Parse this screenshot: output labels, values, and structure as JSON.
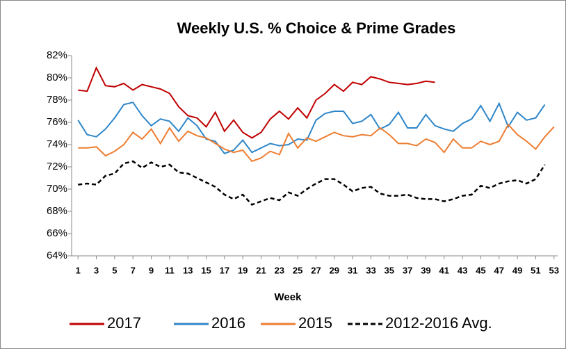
{
  "chart_data": {
    "type": "line",
    "title": "Weekly U.S. % Choice & Prime Grades",
    "x_label": "Week",
    "x": [
      1,
      2,
      3,
      4,
      5,
      6,
      7,
      8,
      9,
      10,
      11,
      12,
      13,
      14,
      15,
      16,
      17,
      18,
      19,
      20,
      21,
      22,
      23,
      24,
      25,
      26,
      27,
      28,
      29,
      30,
      31,
      32,
      33,
      34,
      35,
      36,
      37,
      38,
      39,
      40,
      41,
      42,
      43,
      44,
      45,
      46,
      47,
      48,
      49,
      50,
      51,
      52,
      53
    ],
    "xlim": [
      0.3,
      53.4
    ],
    "xticks": [
      1,
      3,
      5,
      7,
      9,
      11,
      13,
      15,
      17,
      19,
      21,
      23,
      25,
      27,
      29,
      31,
      33,
      35,
      37,
      39,
      41,
      43,
      45,
      47,
      49,
      51,
      53
    ],
    "ylim": [
      64,
      82
    ],
    "yticks": [
      {
        "value": 64,
        "label": "64%"
      },
      {
        "value": 66,
        "label": "66%"
      },
      {
        "value": 68,
        "label": "68%"
      },
      {
        "value": 70,
        "label": "70%"
      },
      {
        "value": 72,
        "label": "72%"
      },
      {
        "value": 74,
        "label": "74%"
      },
      {
        "value": 76,
        "label": "76%"
      },
      {
        "value": 78,
        "label": "78%"
      },
      {
        "value": 80,
        "label": "80%"
      },
      {
        "value": 82,
        "label": "82%"
      }
    ],
    "grid": false,
    "legend": "bottom",
    "series": [
      {
        "name": "2017",
        "color": "#c00000",
        "dashed": false,
        "values": [
          78.9,
          78.8,
          80.9,
          79.3,
          79.2,
          79.5,
          78.9,
          79.4,
          79.2,
          79.0,
          78.6,
          77.4,
          76.6,
          76.4,
          75.6,
          76.9,
          75.2,
          76.2,
          75.1,
          74.6,
          75.1,
          76.3,
          77.0,
          76.3,
          77.3,
          76.4,
          78.0,
          78.6,
          79.4,
          78.8,
          79.6,
          79.4,
          80.1,
          79.9,
          79.6,
          79.5,
          79.4,
          79.5,
          79.7,
          79.6,
          null,
          null,
          null,
          null,
          null,
          null,
          null,
          null,
          null,
          null,
          null,
          null,
          null
        ]
      },
      {
        "name": "2016",
        "color": "#2e86c9",
        "dashed": false,
        "values": [
          76.2,
          74.9,
          74.7,
          75.4,
          76.4,
          77.6,
          77.8,
          76.6,
          75.7,
          76.3,
          76.1,
          75.2,
          76.4,
          75.7,
          74.5,
          74.3,
          73.2,
          73.5,
          74.4,
          73.3,
          73.7,
          74.1,
          73.9,
          74.0,
          74.5,
          74.4,
          76.2,
          76.8,
          77.0,
          77.0,
          75.9,
          76.1,
          76.7,
          75.4,
          75.8,
          76.9,
          75.5,
          75.5,
          76.7,
          75.7,
          75.4,
          75.2,
          75.9,
          76.3,
          77.5,
          76.1,
          77.7,
          75.6,
          76.9,
          76.2,
          76.4,
          77.6,
          null
        ]
      },
      {
        "name": "2015",
        "color": "#ed7d31",
        "dashed": false,
        "values": [
          73.7,
          73.7,
          73.8,
          73.0,
          73.4,
          74.0,
          75.1,
          74.5,
          75.4,
          74.1,
          75.5,
          74.3,
          75.2,
          74.8,
          74.6,
          74.1,
          73.6,
          73.3,
          73.5,
          72.5,
          72.8,
          73.4,
          73.1,
          75.0,
          73.7,
          74.6,
          74.3,
          74.7,
          75.1,
          74.8,
          74.7,
          74.9,
          74.8,
          75.5,
          74.9,
          74.1,
          74.1,
          73.9,
          74.5,
          74.2,
          73.3,
          74.5,
          73.7,
          73.7,
          74.3,
          74.0,
          74.3,
          75.8,
          74.9,
          74.3,
          73.6,
          74.7,
          75.6
        ]
      },
      {
        "name": "2012-2016 Avg.",
        "color": "#000000",
        "dashed": true,
        "values": [
          70.4,
          70.5,
          70.4,
          71.2,
          71.4,
          72.3,
          72.5,
          71.9,
          72.4,
          72.0,
          72.2,
          71.5,
          71.4,
          71.0,
          70.6,
          70.2,
          69.5,
          69.1,
          69.5,
          68.6,
          68.9,
          69.2,
          69.0,
          69.7,
          69.4,
          70.0,
          70.5,
          70.9,
          70.9,
          70.4,
          69.8,
          70.1,
          70.2,
          69.6,
          69.4,
          69.4,
          69.5,
          69.2,
          69.1,
          69.1,
          68.9,
          69.1,
          69.4,
          69.5,
          70.3,
          70.1,
          70.5,
          70.7,
          70.8,
          70.5,
          70.9,
          72.2,
          null
        ]
      }
    ]
  }
}
